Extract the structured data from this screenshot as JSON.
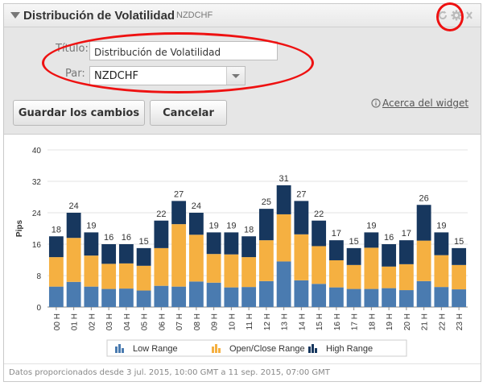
{
  "header": {
    "title": "Distribución de Volatilidad",
    "subtitle": "NZDCHF"
  },
  "settings": {
    "title_label": "Título:",
    "title_value": "Distribución de Volatilidad",
    "pair_label": "Par:",
    "pair_value": "NZDCHF",
    "save_label": "Guardar los cambios",
    "cancel_label": "Cancelar",
    "about_label": "Acerca del widget"
  },
  "colors": {
    "low": "#4a7bb0",
    "openclose": "#f5b041",
    "high": "#17375e"
  },
  "chart_data": {
    "type": "bar",
    "stacked": true,
    "ylabel": "Pips",
    "ylim": [
      0,
      40
    ],
    "yticks": [
      0,
      8,
      16,
      24,
      32,
      40
    ],
    "categories": [
      "00 H",
      "01 H",
      "02 H",
      "03 H",
      "04 H",
      "05 H",
      "06 H",
      "07 H",
      "08 H",
      "09 H",
      "10 H",
      "11 H",
      "12 H",
      "13 H",
      "14 H",
      "15 H",
      "16 H",
      "17 H",
      "18 H",
      "19 H",
      "20 H",
      "21 H",
      "22 H",
      "23 H"
    ],
    "totals": [
      18,
      24,
      19,
      16,
      16,
      15,
      22,
      27,
      24,
      19,
      19,
      18,
      25,
      31,
      27,
      22,
      17,
      15,
      19,
      16,
      17,
      26,
      19,
      15
    ],
    "series": [
      {
        "name": "Low Range",
        "values": [
          5.2,
          6.4,
          5.2,
          4.6,
          4.7,
          4.2,
          5.4,
          5.2,
          6.5,
          6.2,
          5.0,
          5.1,
          6.6,
          11.6,
          6.8,
          5.9,
          5.0,
          4.6,
          4.6,
          4.8,
          4.3,
          6.6,
          5.1,
          4.5
        ]
      },
      {
        "name": "Open/Close Range",
        "values": [
          7.5,
          11.2,
          7.9,
          6.4,
          6.4,
          6.3,
          9.6,
          15.9,
          11.9,
          7.3,
          8.4,
          7.6,
          10.4,
          12.0,
          11.7,
          9.6,
          6.9,
          6.1,
          10.5,
          5.5,
          6.6,
          10.3,
          8.1,
          6.2
        ]
      },
      {
        "name": "High Range",
        "values": [
          5.3,
          6.4,
          5.9,
          5.0,
          4.9,
          4.5,
          7.0,
          5.9,
          5.6,
          5.5,
          5.6,
          5.3,
          8.0,
          7.4,
          8.5,
          6.5,
          5.1,
          4.3,
          3.9,
          5.7,
          6.1,
          9.1,
          5.8,
          4.3
        ]
      }
    ]
  },
  "footer": {
    "text": "Datos proporcionados desde 3 jul. 2015, 10:00 GMT a 11 sep. 2015, 07:00 GMT"
  }
}
